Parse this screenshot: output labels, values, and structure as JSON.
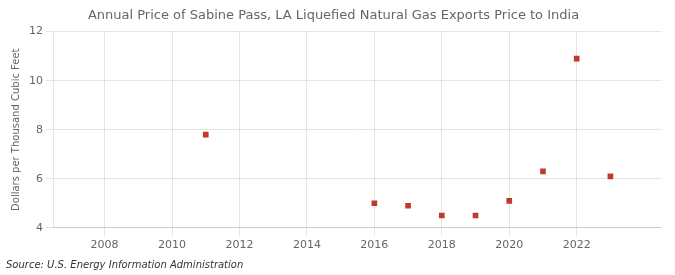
{
  "chart_data": {
    "type": "scatter",
    "title": "Annual Price of Sabine Pass, LA Liquefied Natural Gas Exports Price to India",
    "ylabel": "Dollars per Thousand Cubic Feet",
    "annotation": "Source: U.S. Energy Information Administration",
    "x": [
      2011,
      2016,
      2017,
      2018,
      2019,
      2020,
      2021,
      2022,
      2023
    ],
    "values": [
      7.8,
      5.0,
      4.9,
      4.5,
      4.5,
      5.1,
      6.3,
      10.9,
      6.1
    ],
    "xlim": [
      2006.5,
      2024.5
    ],
    "ylim": [
      4,
      12
    ],
    "xticks": [
      2008,
      2010,
      2012,
      2014,
      2016,
      2018,
      2020,
      2022
    ],
    "yticks": [
      4,
      6,
      8,
      10,
      12
    ],
    "color": "#c0392b",
    "marker": "square",
    "grid": true
  }
}
